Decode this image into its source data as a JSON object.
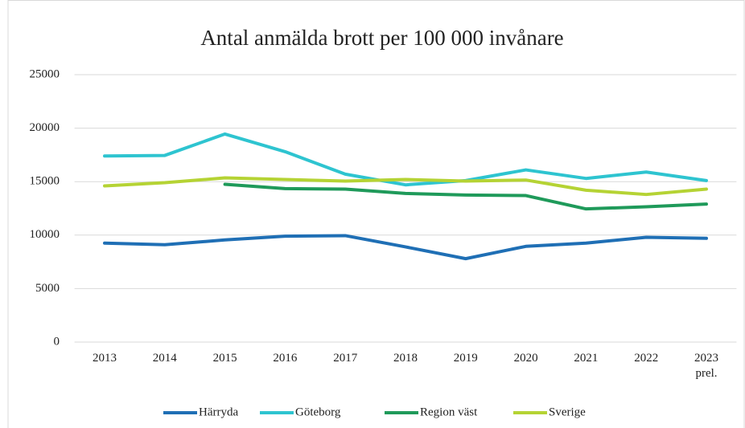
{
  "chart_data": {
    "type": "line",
    "title": "Antal anmälda brott per 100 000 invånare",
    "categories": [
      "2013",
      "2014",
      "2015",
      "2016",
      "2017",
      "2018",
      "2019",
      "2020",
      "2021",
      "2022",
      "2023 prel."
    ],
    "series": [
      {
        "name": "Härryda",
        "color": "#1f6fb5",
        "values": [
          9250,
          9100,
          9550,
          9900,
          9950,
          8900,
          7800,
          8950,
          9250,
          9800,
          9700
        ]
      },
      {
        "name": "Göteborg",
        "color": "#2ec4d0",
        "values": [
          17400,
          17450,
          19450,
          17800,
          15700,
          14700,
          15100,
          16100,
          15300,
          15900,
          15100
        ]
      },
      {
        "name": "Region väst",
        "color": "#1f9a5a",
        "values": [
          null,
          null,
          14750,
          14350,
          14300,
          13900,
          13750,
          13700,
          12450,
          12650,
          12900
        ]
      },
      {
        "name": "Sverige",
        "color": "#b5d334",
        "values": [
          14600,
          14900,
          15350,
          15200,
          15050,
          15200,
          15050,
          15150,
          14200,
          13800,
          14300
        ]
      }
    ],
    "ylim": [
      0,
      25000
    ],
    "yticks": [
      0,
      5000,
      10000,
      15000,
      20000,
      25000
    ],
    "grid": true,
    "legend": "bottom"
  }
}
